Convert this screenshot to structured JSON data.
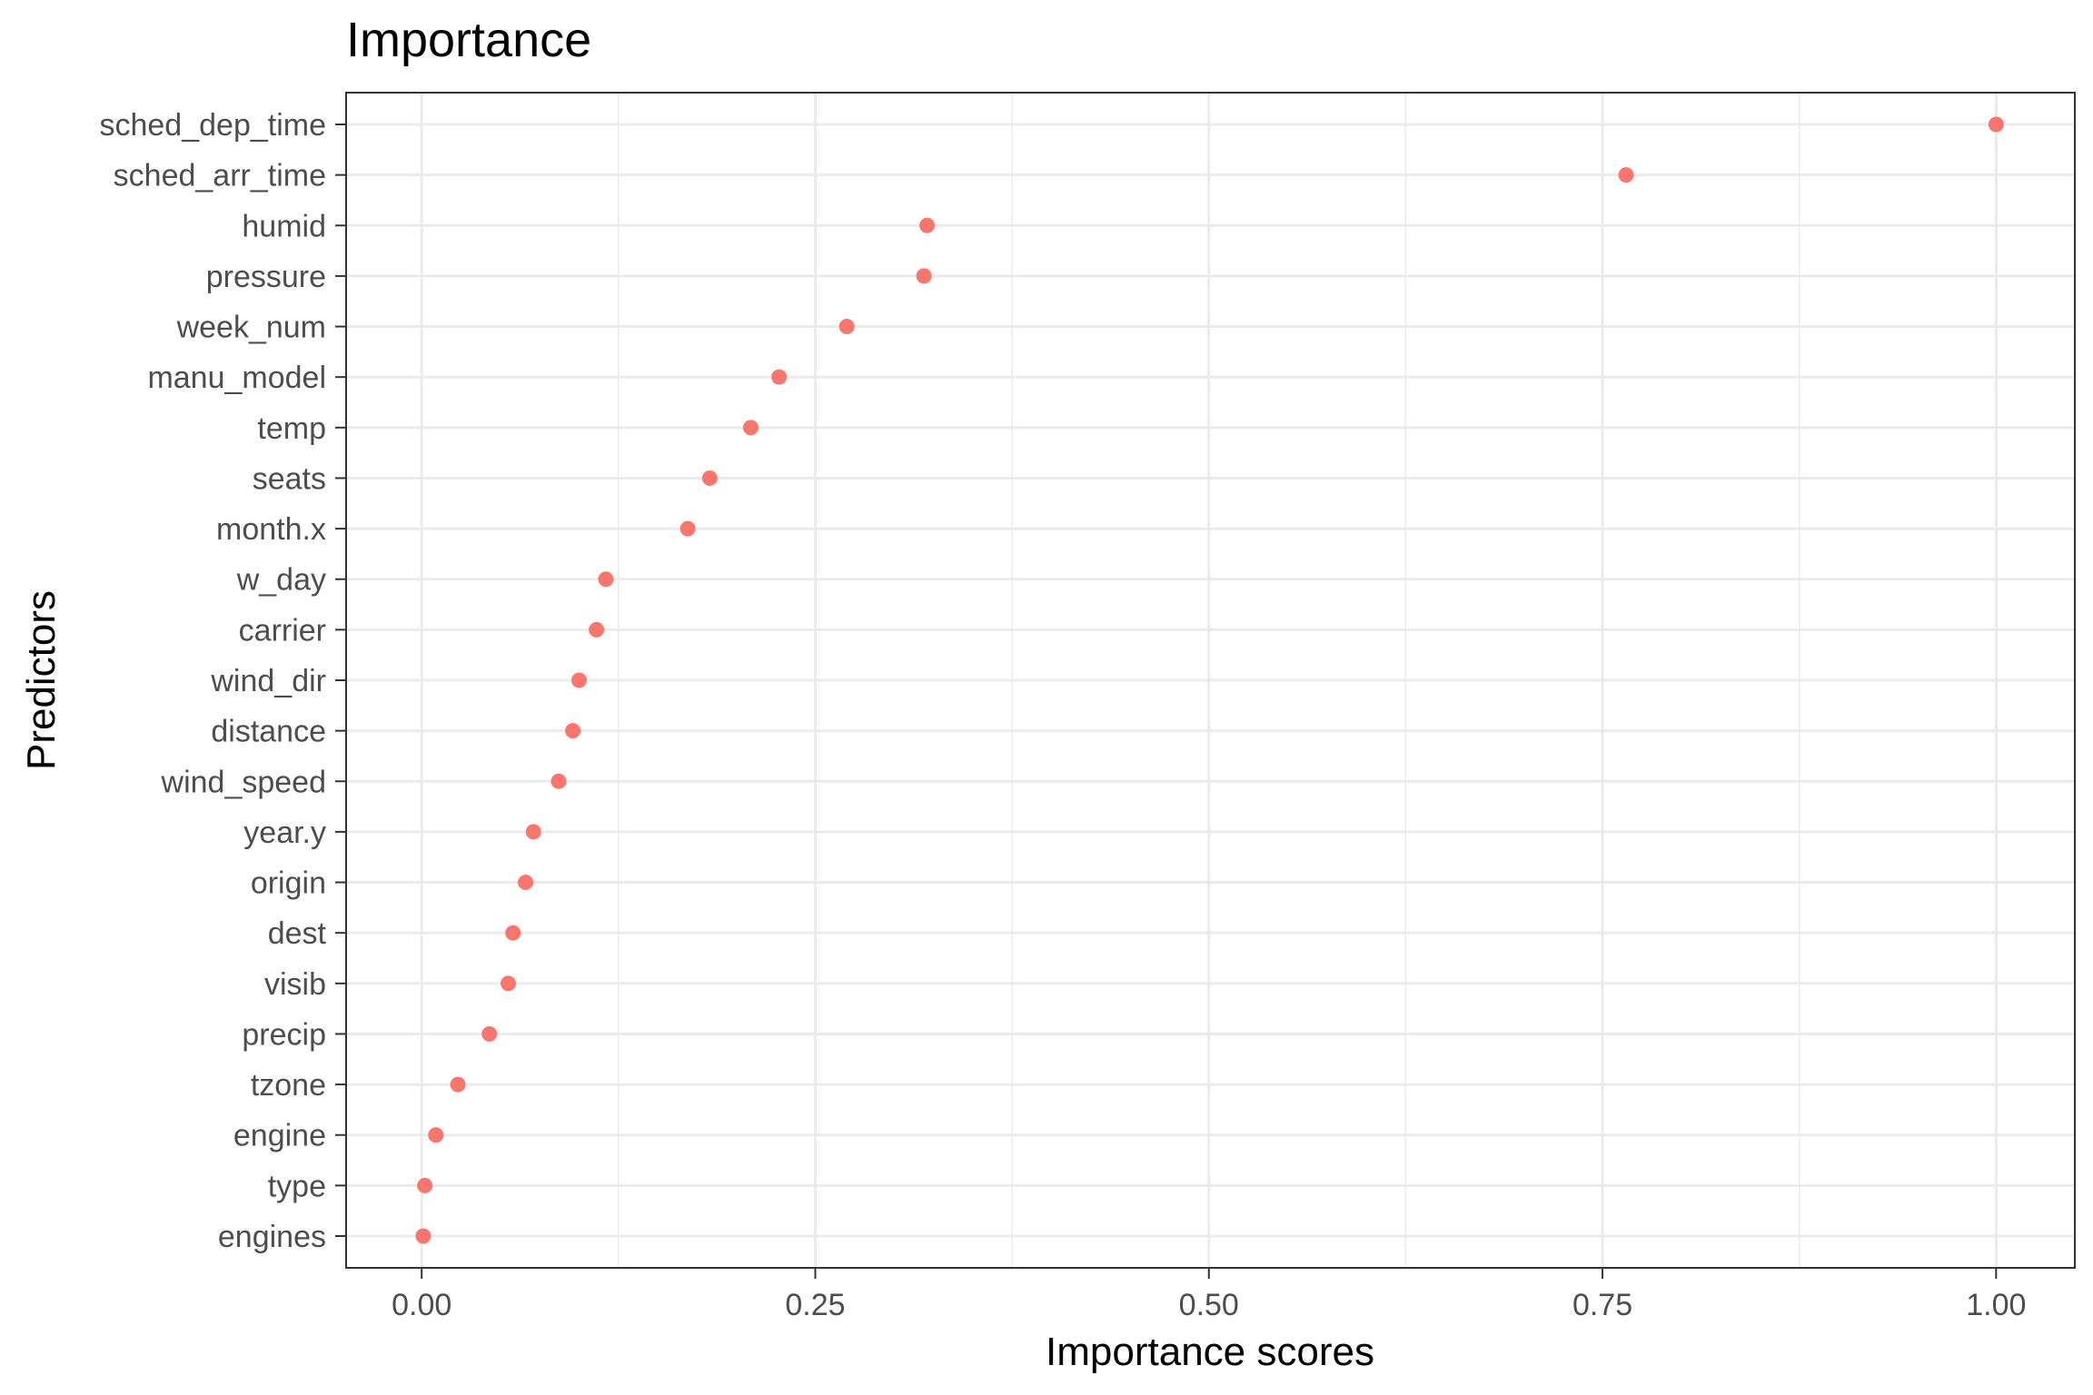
{
  "chart_data": {
    "type": "scatter",
    "title": "Importance",
    "xlabel": "Importance scores",
    "ylabel": "Predictors",
    "xlim": [
      -0.048,
      1.05
    ],
    "xticks": [
      0.0,
      0.25,
      0.5,
      0.75,
      1.0
    ],
    "xtick_labels": [
      "0.00",
      "0.25",
      "0.50",
      "0.75",
      "1.00"
    ],
    "grid": true,
    "point_color": "#f8766d",
    "categories": [
      "sched_dep_time",
      "sched_arr_time",
      "humid",
      "pressure",
      "week_num",
      "manu_model",
      "temp",
      "seats",
      "month.x",
      "w_day",
      "carrier",
      "wind_dir",
      "distance",
      "wind_speed",
      "year.y",
      "origin",
      "dest",
      "visib",
      "precip",
      "tzone",
      "engine",
      "type",
      "engines"
    ],
    "values": [
      1.0,
      0.765,
      0.321,
      0.319,
      0.27,
      0.227,
      0.209,
      0.183,
      0.169,
      0.117,
      0.111,
      0.1,
      0.096,
      0.087,
      0.071,
      0.066,
      0.058,
      0.055,
      0.043,
      0.023,
      0.009,
      0.002,
      0.001
    ]
  }
}
